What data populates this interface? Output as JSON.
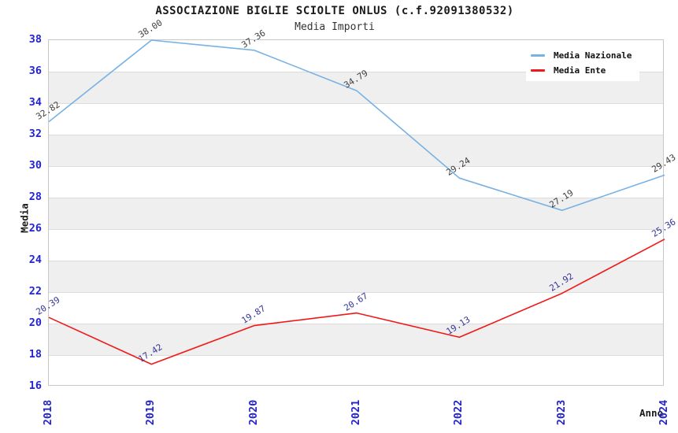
{
  "title": "ASSOCIAZIONE BIGLIE SCIOLTE ONLUS (c.f.92091380532)",
  "subtitle": "Media Importi",
  "colors": {
    "band_fill": "#efefef",
    "gridline": "#dcdcdc",
    "plot_border": "#c8c8c8",
    "tick_label": "#2424cc",
    "blue_series": "#78b1e4",
    "red_series": "#f11818",
    "blue_series_point_label": "#3d3d3d",
    "red_series_point_label": "#333399"
  },
  "legend": [
    {
      "label": "Media Nazionale",
      "color": "#78b1e4"
    },
    {
      "label": "Media Ente",
      "color": "#f11818"
    }
  ],
  "chart_data": {
    "type": "line",
    "x": [
      2018,
      2019,
      2020,
      2021,
      2022,
      2023,
      2024
    ],
    "series": [
      {
        "name": "Media Nazionale",
        "color": "#78b1e4",
        "label_color": "#3d3d3d",
        "values": [
          32.82,
          38.0,
          37.36,
          34.79,
          29.24,
          27.19,
          29.43
        ]
      },
      {
        "name": "Media Ente",
        "color": "#f11818",
        "label_color": "#333399",
        "values": [
          20.39,
          17.42,
          19.87,
          20.67,
          19.13,
          21.92,
          25.36
        ]
      }
    ],
    "xlabel": "Anno",
    "ylabel": "Media",
    "ylim": [
      16,
      38
    ],
    "ytick_step": 2,
    "grid": "horizontal-bands",
    "legend_position": "top-right",
    "point_labels": "two-decimals-rotated"
  }
}
